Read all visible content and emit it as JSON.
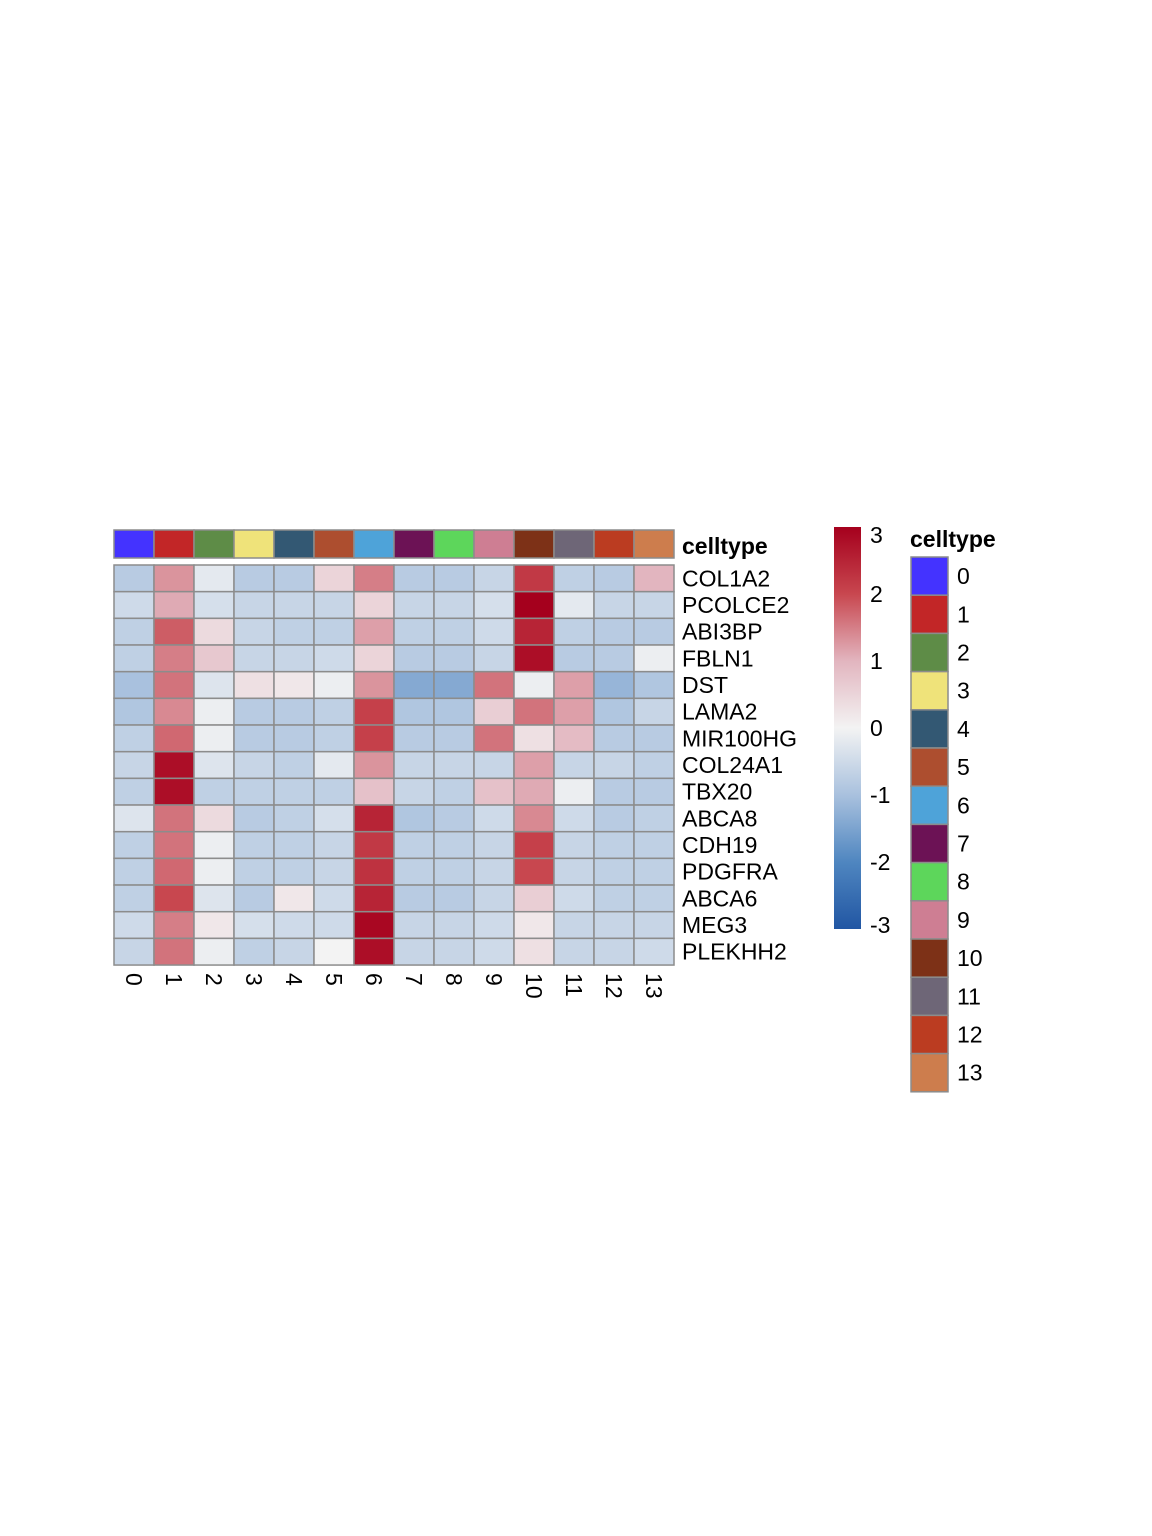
{
  "chart_data": {
    "type": "heatmap",
    "title": "",
    "columns": [
      "0",
      "1",
      "2",
      "3",
      "4",
      "5",
      "6",
      "7",
      "8",
      "9",
      "10",
      "11",
      "12",
      "13"
    ],
    "rows": [
      "COL1A2",
      "PCOLCE2",
      "ABI3BP",
      "FBLN1",
      "DST",
      "LAMA2",
      "MIR100HG",
      "COL24A1",
      "TBX20",
      "ABCA8",
      "CDH19",
      "PDGFRA",
      "ABCA6",
      "MEG3",
      "PLEKHH2"
    ],
    "values": [
      [
        -0.8,
        1.3,
        -0.2,
        -0.8,
        -0.8,
        0.5,
        1.5,
        -0.8,
        -0.8,
        -0.6,
        2.2,
        -0.7,
        -0.8,
        1.0
      ],
      [
        -0.5,
        1.1,
        -0.4,
        -0.6,
        -0.6,
        -0.6,
        0.5,
        -0.6,
        -0.6,
        -0.4,
        3.0,
        -0.2,
        -0.6,
        -0.6
      ],
      [
        -0.7,
        1.8,
        0.4,
        -0.6,
        -0.7,
        -0.7,
        1.2,
        -0.7,
        -0.7,
        -0.5,
        2.5,
        -0.7,
        -0.8,
        -0.8
      ],
      [
        -0.7,
        1.5,
        0.7,
        -0.6,
        -0.6,
        -0.5,
        0.5,
        -0.8,
        -0.8,
        -0.6,
        2.8,
        -0.8,
        -0.8,
        -0.1
      ],
      [
        -1.0,
        1.6,
        -0.3,
        0.3,
        0.2,
        -0.1,
        1.3,
        -1.4,
        -1.4,
        1.6,
        -0.1,
        1.2,
        -1.2,
        -0.9
      ],
      [
        -0.9,
        1.4,
        -0.1,
        -0.8,
        -0.8,
        -0.7,
        2.1,
        -0.9,
        -0.9,
        0.6,
        1.6,
        1.2,
        -0.9,
        -0.6
      ],
      [
        -0.7,
        1.7,
        -0.1,
        -0.8,
        -0.8,
        -0.7,
        2.1,
        -0.8,
        -0.8,
        1.6,
        0.3,
        0.9,
        -0.8,
        -0.8
      ],
      [
        -0.6,
        2.8,
        -0.3,
        -0.6,
        -0.7,
        -0.2,
        1.3,
        -0.6,
        -0.6,
        -0.6,
        1.2,
        -0.6,
        -0.6,
        -0.7
      ],
      [
        -0.7,
        2.8,
        -0.7,
        -0.7,
        -0.7,
        -0.7,
        0.8,
        -0.6,
        -0.7,
        0.8,
        1.1,
        -0.1,
        -0.8,
        -0.8
      ],
      [
        -0.3,
        1.6,
        0.4,
        -0.8,
        -0.7,
        -0.4,
        2.5,
        -0.9,
        -0.8,
        -0.5,
        1.4,
        -0.5,
        -0.8,
        -0.7
      ],
      [
        -0.7,
        1.6,
        -0.1,
        -0.7,
        -0.7,
        -0.6,
        2.2,
        -0.7,
        -0.7,
        -0.6,
        2.1,
        -0.6,
        -0.7,
        -0.7
      ],
      [
        -0.7,
        1.7,
        -0.1,
        -0.7,
        -0.7,
        -0.6,
        2.3,
        -0.7,
        -0.7,
        -0.6,
        2.0,
        -0.6,
        -0.7,
        -0.7
      ],
      [
        -0.7,
        2.0,
        -0.3,
        -0.8,
        0.2,
        -0.5,
        2.5,
        -0.8,
        -0.8,
        -0.6,
        0.6,
        -0.5,
        -0.7,
        -0.7
      ],
      [
        -0.5,
        1.5,
        0.2,
        -0.4,
        -0.5,
        -0.5,
        2.9,
        -0.6,
        -0.6,
        -0.5,
        0.2,
        -0.6,
        -0.6,
        -0.6
      ],
      [
        -0.6,
        1.6,
        -0.1,
        -0.7,
        -0.6,
        0.0,
        2.8,
        -0.6,
        -0.6,
        -0.5,
        0.3,
        -0.6,
        -0.6,
        -0.5
      ]
    ],
    "annotation": {
      "label": "celltype",
      "colors": [
        "#4433ff",
        "#c22627",
        "#5e8c47",
        "#efe37a",
        "#335873",
        "#ad4e2f",
        "#4ea3d9",
        "#6c1255",
        "#5dd65b",
        "#ce7e93",
        "#7d3117",
        "#6e6677",
        "#bb3c21",
        "#cd7d4d"
      ]
    },
    "colorbar": {
      "min": -3,
      "max": 3,
      "ticks": [
        "3",
        "2",
        "1",
        "0",
        "-1",
        "-2",
        "-3"
      ],
      "gradient": [
        "#2156a3",
        "#4f86c0",
        "#a9c1de",
        "#f3f3f3",
        "#e2b5bf",
        "#c8474f",
        "#a5001d"
      ]
    },
    "legend": {
      "title": "celltype",
      "labels": [
        "0",
        "1",
        "2",
        "3",
        "4",
        "5",
        "6",
        "7",
        "8",
        "9",
        "10",
        "11",
        "12",
        "13"
      ]
    }
  }
}
